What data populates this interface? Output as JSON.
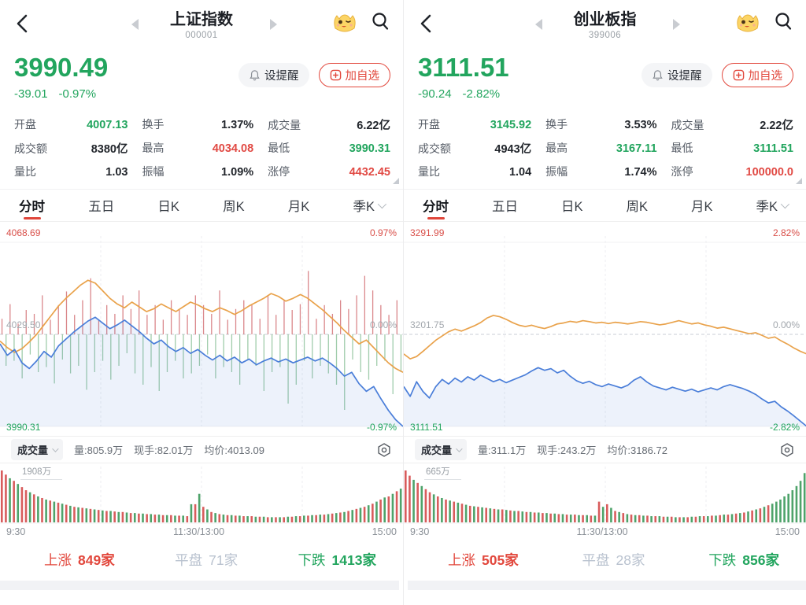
{
  "colors": {
    "up_red": "#e2483d",
    "down_green": "#22a55e",
    "avg_orange": "#e9a24b",
    "price_blue": "#4a7ed9",
    "flat_gray": "#b9c2cf"
  },
  "panels": [
    {
      "header": {
        "title": "上证指数",
        "code": "000001"
      },
      "quote": {
        "price": "3990.49",
        "change": "-39.01",
        "change_pct": "-0.97%"
      },
      "actions": {
        "alert": "设提醒",
        "watchlist": "加自选"
      },
      "stats": [
        {
          "label": "开盘",
          "value": "4007.13"
        },
        {
          "label": "换手",
          "value": "1.37%"
        },
        {
          "label": "成交量",
          "value": "6.22亿"
        },
        {
          "label": "成交额",
          "value": "8380亿"
        },
        {
          "label": "最高",
          "value": "4034.08"
        },
        {
          "label": "最低",
          "value": "3990.31"
        },
        {
          "label": "量比",
          "value": "1.03"
        },
        {
          "label": "振幅",
          "value": "1.09%"
        },
        {
          "label": "涨停",
          "value": "4432.45"
        }
      ],
      "tabs": [
        "分时",
        "五日",
        "日K",
        "周K",
        "月K",
        "季K"
      ],
      "active_tab": "分时",
      "chart_labels": {
        "high": "4068.69",
        "high_pct": "0.97%",
        "mid": "4029.50",
        "mid_pct": "0.00%",
        "low": "3990.31",
        "low_pct": "-0.97%"
      },
      "volume_toolbar": {
        "selector": "成交量",
        "volume": "量:805.9万",
        "lots": "现手:82.01万",
        "avg_price": "均价:4013.09"
      },
      "volume_max": "1908万",
      "x_labels": [
        "9:30",
        "11:30/13:00",
        "15:00"
      ],
      "breadth": {
        "up_label": "上涨",
        "up_count": "849家",
        "flat_label": "平盘",
        "flat_count": "71家",
        "down_label": "下跌",
        "down_count": "1413家"
      }
    },
    {
      "header": {
        "title": "创业板指",
        "code": "399006"
      },
      "quote": {
        "price": "3111.51",
        "change": "-90.24",
        "change_pct": "-2.82%"
      },
      "actions": {
        "alert": "设提醒",
        "watchlist": "加自选"
      },
      "stats": [
        {
          "label": "开盘",
          "value": "3145.92"
        },
        {
          "label": "换手",
          "value": "3.53%"
        },
        {
          "label": "成交量",
          "value": "2.22亿"
        },
        {
          "label": "成交额",
          "value": "4943亿"
        },
        {
          "label": "最高",
          "value": "3167.11"
        },
        {
          "label": "最低",
          "value": "3111.51"
        },
        {
          "label": "量比",
          "value": "1.04"
        },
        {
          "label": "振幅",
          "value": "1.74%"
        },
        {
          "label": "涨停",
          "value": "100000.0"
        }
      ],
      "tabs": [
        "分时",
        "五日",
        "日K",
        "周K",
        "月K",
        "季K"
      ],
      "active_tab": "分时",
      "chart_labels": {
        "high": "3291.99",
        "high_pct": "2.82%",
        "mid": "3201.75",
        "mid_pct": "0.00%",
        "low": "3111.51",
        "low_pct": "-2.82%"
      },
      "volume_toolbar": {
        "selector": "成交量",
        "volume": "量:311.1万",
        "lots": "现手:243.2万",
        "avg_price": "均价:3186.72"
      },
      "volume_max": "665万",
      "x_labels": [
        "9:30",
        "11:30/13:00",
        "15:00"
      ],
      "breadth": {
        "up_label": "上涨",
        "up_count": "505家",
        "flat_label": "平盘",
        "flat_count": "28家",
        "down_label": "下跌",
        "down_count": "856家"
      }
    }
  ],
  "chart_data": [
    {
      "type": "line",
      "title": "上证指数 分时",
      "x_range": [
        "9:30",
        "11:30/13:00",
        "15:00"
      ],
      "y_axis": {
        "high": 4068.69,
        "prev_close": 4029.5,
        "low": 3990.31,
        "pct_limit": 0.97
      },
      "series": [
        {
          "name": "price_pct",
          "values": [
            -0.1,
            -0.22,
            -0.16,
            -0.3,
            -0.36,
            -0.28,
            -0.18,
            -0.24,
            -0.12,
            -0.05,
            0.02,
            0.08,
            0.14,
            0.18,
            0.12,
            0.06,
            0.1,
            0.15,
            0.09,
            0.03,
            -0.04,
            -0.1,
            -0.06,
            -0.13,
            -0.18,
            -0.14,
            -0.2,
            -0.16,
            -0.22,
            -0.27,
            -0.22,
            -0.28,
            -0.24,
            -0.3,
            -0.26,
            -0.32,
            -0.28,
            -0.25,
            -0.29,
            -0.26,
            -0.3,
            -0.27,
            -0.24,
            -0.28,
            -0.25,
            -0.3,
            -0.36,
            -0.44,
            -0.4,
            -0.52,
            -0.6,
            -0.55,
            -0.68,
            -0.8,
            -0.9,
            -0.97
          ]
        },
        {
          "name": "avg_price_pct",
          "values": [
            -0.07,
            -0.14,
            -0.19,
            -0.15,
            -0.08,
            0.0,
            0.1,
            0.2,
            0.3,
            0.38,
            0.45,
            0.52,
            0.57,
            0.54,
            0.46,
            0.38,
            0.32,
            0.28,
            0.34,
            0.29,
            0.24,
            0.27,
            0.32,
            0.28,
            0.24,
            0.29,
            0.34,
            0.31,
            0.27,
            0.24,
            0.28,
            0.25,
            0.21,
            0.25,
            0.3,
            0.34,
            0.38,
            0.43,
            0.4,
            0.35,
            0.38,
            0.42,
            0.38,
            0.32,
            0.26,
            0.19,
            0.12,
            0.04,
            -0.03,
            -0.1,
            -0.06,
            -0.14,
            -0.22,
            -0.3,
            -0.36,
            -0.4
          ]
        }
      ],
      "minute_ticks": [
        0.32,
        -0.5,
        0.62,
        -0.42,
        0.22,
        -0.7,
        0.5,
        -0.32,
        0.42,
        -0.6,
        0.8,
        -0.52,
        0.3,
        -0.78,
        0.6,
        -0.4,
        0.88,
        -0.62,
        0.4,
        -0.5,
        0.7,
        -0.88,
        1.15,
        -0.6,
        0.3,
        -0.42,
        0.6,
        -0.72,
        0.42,
        -0.5,
        0.8,
        -0.3,
        0.52,
        -0.62,
        0.9,
        -0.8,
        0.4,
        -0.52,
        0.6,
        -0.9,
        0.3,
        -0.6,
        0.7,
        -0.42,
        0.5,
        -0.7,
        0.4,
        -0.62,
        0.8,
        -0.5,
        0.6,
        -0.32,
        0.42,
        -0.7,
        0.9,
        -0.52,
        0.3,
        -0.6,
        0.52,
        -0.8,
        0.7,
        -0.4,
        0.6,
        -0.5,
        0.32,
        -0.9,
        0.8,
        -0.6,
        0.4,
        -0.52,
        0.7,
        -1.1,
        0.5,
        -0.8,
        0.62,
        -0.42,
        1.3,
        -0.7,
        0.32,
        -0.5,
        0.6,
        -0.62,
        0.42,
        -0.8,
        0.7,
        -1.2,
        0.52,
        -0.4,
        0.8,
        -0.6,
        1.2,
        -0.72,
        0.9,
        -0.5,
        0.6,
        -0.42,
        0.4,
        -0.95,
        0.7,
        -0.6
      ],
      "volume_bars": [
        1,
        0.92,
        -0.85,
        0.8,
        -0.74,
        0.68,
        0.62,
        -0.58,
        0.54,
        -0.5,
        0.47,
        -0.44,
        0.42,
        -0.4,
        0.38,
        -0.36,
        0.34,
        -0.32,
        0.3,
        -0.29,
        0.28,
        -0.27,
        0.26,
        -0.25,
        0.24,
        -0.23,
        0.22,
        -0.22,
        0.21,
        -0.2,
        0.2,
        -0.19,
        0.18,
        -0.18,
        0.17,
        -0.17,
        0.16,
        -0.16,
        0.15,
        -0.15,
        0.14,
        -0.14,
        0.14,
        -0.13,
        0.13,
        -0.13,
        0.12,
        -0.35,
        0.35,
        -0.55,
        0.3,
        -0.25,
        0.2,
        -0.18,
        0.16,
        -0.15,
        0.14,
        -0.14,
        0.13,
        -0.13,
        0.12,
        -0.12,
        0.12,
        -0.11,
        0.11,
        -0.11,
        0.1,
        -0.1,
        0.1,
        -0.1,
        0.1,
        -0.11,
        0.11,
        -0.12,
        0.12,
        -0.13,
        0.13,
        -0.14,
        0.14,
        -0.15,
        0.15,
        -0.16,
        0.17,
        -0.18,
        0.19,
        -0.2,
        0.22,
        -0.24,
        0.26,
        -0.28,
        0.3,
        -0.33,
        0.36,
        -0.4,
        0.44,
        -0.48,
        0.5,
        -0.55,
        0.6,
        -0.65
      ]
    },
    {
      "type": "line",
      "title": "创业板指 分时",
      "x_range": [
        "9:30",
        "11:30/13:00",
        "15:00"
      ],
      "y_axis": {
        "high": 3291.99,
        "prev_close": 3201.75,
        "low": 3111.51,
        "pct_limit": 2.82
      },
      "series": [
        {
          "name": "price_pct",
          "values": [
            -1.6,
            -1.9,
            -1.45,
            -1.75,
            -1.95,
            -1.6,
            -1.38,
            -1.52,
            -1.34,
            -1.46,
            -1.3,
            -1.4,
            -1.25,
            -1.35,
            -1.45,
            -1.38,
            -1.48,
            -1.4,
            -1.32,
            -1.24,
            -1.12,
            -1.02,
            -1.1,
            -1.05,
            -1.18,
            -1.1,
            -1.28,
            -1.42,
            -1.5,
            -1.44,
            -1.54,
            -1.6,
            -1.52,
            -1.58,
            -1.64,
            -1.56,
            -1.4,
            -1.3,
            -1.46,
            -1.58,
            -1.64,
            -1.7,
            -1.62,
            -1.68,
            -1.74,
            -1.68,
            -1.76,
            -1.7,
            -1.64,
            -1.7,
            -1.6,
            -1.54,
            -1.6,
            -1.66,
            -1.74,
            -1.84,
            -1.98,
            -2.1,
            -2.05,
            -2.22,
            -2.35,
            -2.5,
            -2.66,
            -2.82
          ]
        },
        {
          "name": "avg_price_pct",
          "values": [
            -0.6,
            -0.75,
            -0.68,
            -0.52,
            -0.35,
            -0.18,
            -0.05,
            0.08,
            0.16,
            0.1,
            0.18,
            0.26,
            0.36,
            0.5,
            0.58,
            0.54,
            0.46,
            0.36,
            0.28,
            0.24,
            0.28,
            0.22,
            0.18,
            0.24,
            0.32,
            0.35,
            0.4,
            0.37,
            0.42,
            0.39,
            0.35,
            0.37,
            0.33,
            0.37,
            0.35,
            0.32,
            0.35,
            0.39,
            0.37,
            0.33,
            0.29,
            0.32,
            0.37,
            0.42,
            0.37,
            0.32,
            0.35,
            0.29,
            0.25,
            0.19,
            0.22,
            0.17,
            0.12,
            0.07,
            0.02,
            0.05,
            -0.03,
            -0.12,
            -0.08,
            -0.2,
            -0.3,
            -0.42,
            -0.52,
            -0.6
          ]
        }
      ],
      "minute_ticks": [],
      "volume_bars": [
        1,
        0.9,
        -0.82,
        0.76,
        -0.7,
        0.64,
        0.58,
        -0.54,
        0.5,
        -0.47,
        0.44,
        -0.42,
        0.4,
        -0.38,
        0.36,
        -0.34,
        0.32,
        -0.31,
        0.3,
        -0.29,
        0.28,
        -0.27,
        0.26,
        -0.25,
        0.25,
        -0.24,
        0.23,
        -0.22,
        0.22,
        -0.21,
        0.2,
        -0.2,
        0.19,
        -0.19,
        0.18,
        -0.18,
        0.17,
        -0.17,
        0.16,
        -0.16,
        0.15,
        -0.15,
        0.15,
        -0.14,
        0.14,
        -0.14,
        0.13,
        -0.13,
        0.4,
        -0.3,
        0.35,
        -0.28,
        0.22,
        -0.2,
        0.18,
        -0.16,
        0.15,
        -0.14,
        0.14,
        -0.13,
        0.13,
        -0.12,
        0.12,
        -0.12,
        0.11,
        -0.11,
        0.11,
        -0.1,
        0.1,
        -0.1,
        0.1,
        -0.11,
        0.11,
        -0.12,
        0.12,
        -0.12,
        0.13,
        -0.13,
        0.14,
        -0.15,
        0.15,
        -0.16,
        0.17,
        -0.18,
        0.19,
        -0.21,
        0.23,
        -0.25,
        0.27,
        -0.3,
        0.33,
        -0.36,
        -0.4,
        -0.44,
        -0.5,
        -0.55,
        -0.62,
        -0.7,
        -0.8,
        -0.95
      ]
    }
  ]
}
